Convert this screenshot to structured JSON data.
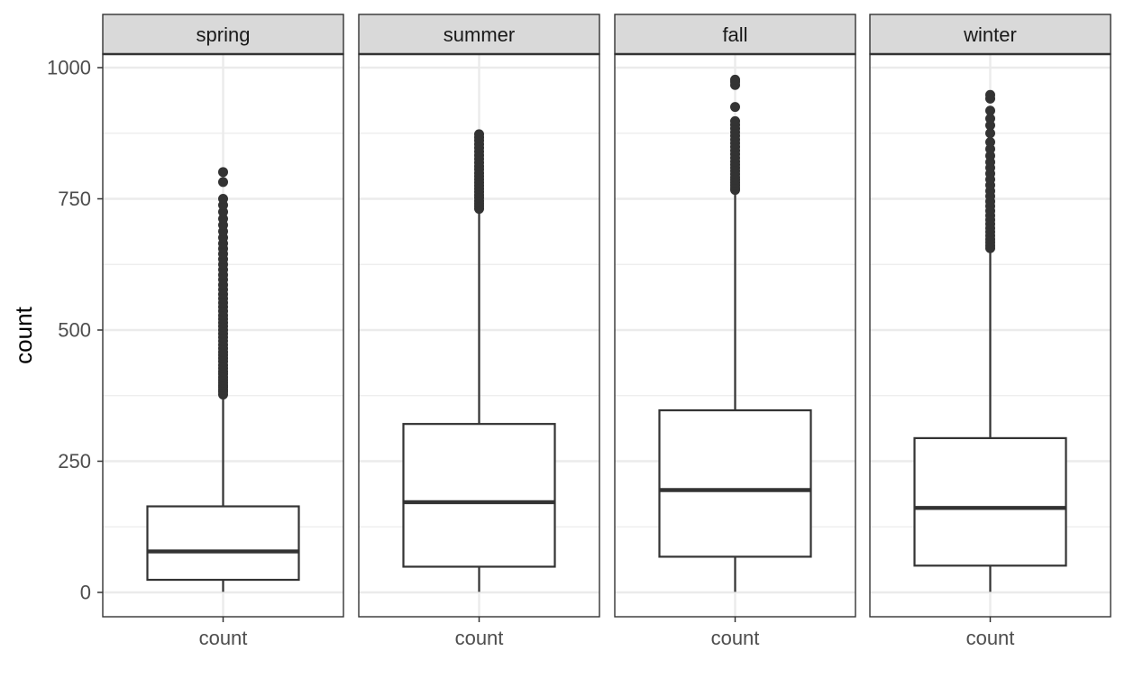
{
  "chart_data": {
    "type": "boxplot",
    "ylabel": "count",
    "ylim": [
      0,
      1000
    ],
    "yticks": [
      0,
      250,
      500,
      750,
      1000
    ],
    "ytick_labels": [
      "0",
      "250",
      "500",
      "750",
      "1000"
    ],
    "grid": true,
    "panels": [
      {
        "name": "spring",
        "xlabel": "count",
        "stats": {
          "min": 1,
          "q1": 24,
          "median": 78,
          "q3": 164,
          "max": 374
        },
        "outliers": [
          377,
          382,
          386,
          391,
          395,
          400,
          405,
          410,
          416,
          421,
          427,
          433,
          440,
          446,
          452,
          458,
          465,
          472,
          479,
          486,
          493,
          500,
          507,
          514,
          521,
          528,
          536,
          544,
          552,
          560,
          568,
          577,
          586,
          596,
          605,
          615,
          625,
          635,
          645,
          655,
          665,
          676,
          688,
          700,
          712,
          725,
          738,
          750,
          782,
          801
        ]
      },
      {
        "name": "summer",
        "xlabel": "count",
        "stats": {
          "min": 1,
          "q1": 49,
          "median": 172,
          "q3": 321,
          "max": 727
        },
        "outliers": [
          731,
          736,
          741,
          746,
          752,
          757,
          763,
          769,
          775,
          781,
          787,
          793,
          799,
          806,
          812,
          819,
          826,
          833,
          840,
          847,
          854,
          861,
          867,
          873
        ]
      },
      {
        "name": "fall",
        "xlabel": "count",
        "stats": {
          "min": 1,
          "q1": 68,
          "median": 195,
          "q3": 347,
          "max": 763
        },
        "outliers": [
          767,
          771,
          776,
          781,
          786,
          791,
          797,
          803,
          809,
          815,
          821,
          828,
          835,
          842,
          849,
          856,
          863,
          870,
          877,
          884,
          891,
          898,
          925,
          967,
          973,
          977
        ]
      },
      {
        "name": "winter",
        "xlabel": "count",
        "stats": {
          "min": 1,
          "q1": 51,
          "median": 161,
          "q3": 294,
          "max": 652
        },
        "outliers": [
          656,
          661,
          667,
          673,
          680,
          687,
          694,
          702,
          710,
          718,
          727,
          736,
          745,
          755,
          765,
          776,
          787,
          798,
          809,
          820,
          832,
          845,
          858,
          875,
          890,
          903,
          918,
          941,
          948
        ]
      }
    ]
  }
}
